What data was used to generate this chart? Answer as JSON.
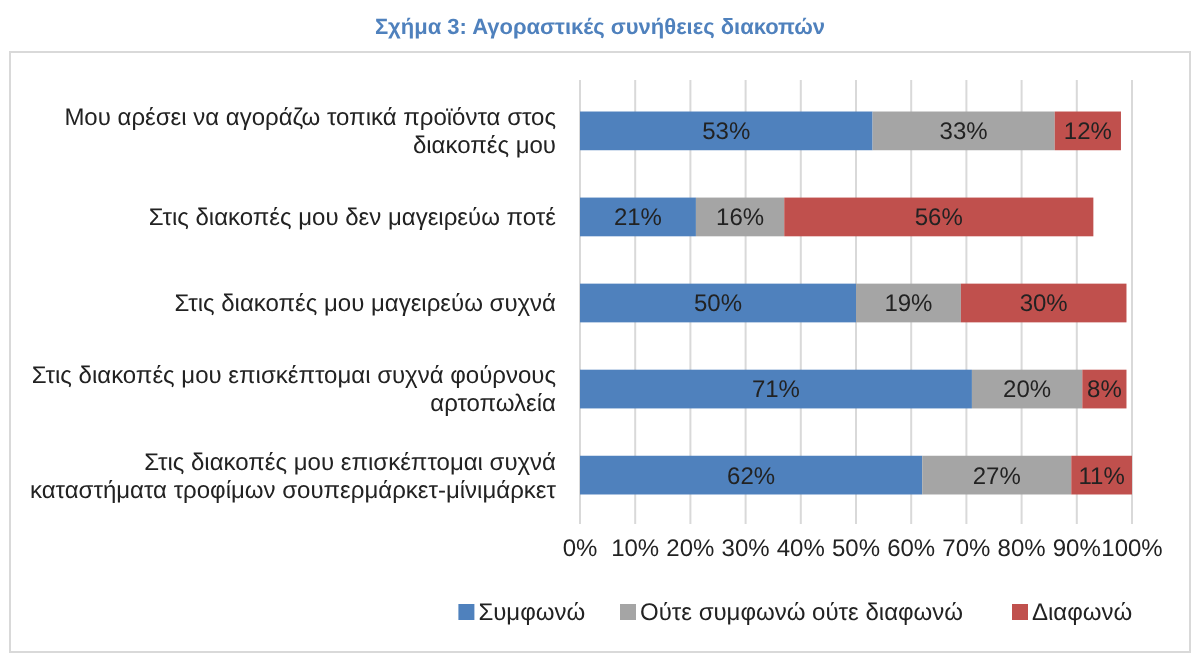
{
  "chart_data": {
    "type": "bar",
    "orientation": "horizontal",
    "stacked": true,
    "title": "Σχήμα 3: Αγοραστικές συνήθειες διακοπών",
    "categories": [
      "Μου αρέσει να αγοράζω τοπικά προϊόντα στος διακοπές μου",
      "Στις διακοπές μου δεν μαγειρεύω ποτέ",
      "Στις διακοπές μου μαγειρεύω συχνά",
      "Στις διακοπές μου επισκέπτομαι συχνά φούρνους αρτοπωλεία",
      "Στις διακοπές μου επισκέπτομαι συχνά καταστήματα τροφίμων σουπερμάρκετ-μίνιμάρκετ"
    ],
    "series": [
      {
        "name": "Συμφωνώ",
        "color": "#4f81bd",
        "values": [
          53,
          21,
          50,
          71,
          62
        ],
        "value_labels": [
          "53%",
          "21%",
          "50%",
          "71%",
          "62%"
        ]
      },
      {
        "name": "Ούτε συμφωνώ ούτε διαφωνώ",
        "color": "#a5a5a5",
        "values": [
          33,
          16,
          19,
          20,
          27
        ],
        "value_labels": [
          "33%",
          "16%",
          "19%",
          "20%",
          "27%"
        ]
      },
      {
        "name": "Διαφωνώ",
        "color": "#c0504d",
        "values": [
          12,
          56,
          30,
          8,
          11
        ],
        "value_labels": [
          "12%",
          "56%",
          "30%",
          "8%",
          "11%"
        ]
      }
    ],
    "xlim": [
      0,
      100
    ],
    "xticks": [
      {
        "value": 0,
        "label": "0%"
      },
      {
        "value": 10,
        "label": "10%"
      },
      {
        "value": 20,
        "label": "20%"
      },
      {
        "value": 30,
        "label": "30%"
      },
      {
        "value": 40,
        "label": "40%"
      },
      {
        "value": 50,
        "label": "50%"
      },
      {
        "value": 60,
        "label": "60%"
      },
      {
        "value": 70,
        "label": "70%"
      },
      {
        "value": 80,
        "label": "80%"
      },
      {
        "value": 90,
        "label": "90%"
      },
      {
        "value": 100,
        "label": "100%"
      }
    ],
    "grid": "x",
    "legend": "bottom"
  }
}
